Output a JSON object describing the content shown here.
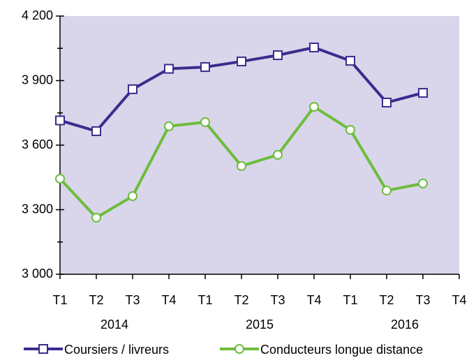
{
  "chart_data": {
    "type": "line",
    "categories": [
      "T1",
      "T2",
      "T3",
      "T4",
      "T1",
      "T2",
      "T3",
      "T4",
      "T1",
      "T2",
      "T3",
      "T4"
    ],
    "groups": [
      {
        "label": "2014",
        "span": [
          0,
          3
        ]
      },
      {
        "label": "2015",
        "span": [
          4,
          7
        ]
      },
      {
        "label": "2016",
        "span": [
          8,
          11
        ]
      }
    ],
    "series": [
      {
        "name": "Coursiers / livreurs",
        "color": "#3d2b8e",
        "marker": "square",
        "values": [
          3715,
          3665,
          3860,
          3955,
          3963,
          3989,
          4018,
          4054,
          3992,
          3798,
          3843,
          null
        ]
      },
      {
        "name": "Conducteurs longue distance",
        "color": "#6cbd3b",
        "marker": "circle",
        "values": [
          3444,
          3263,
          3363,
          3688,
          3707,
          3503,
          3555,
          3778,
          3671,
          3389,
          3422,
          null
        ]
      }
    ],
    "ylim": [
      3000,
      4200
    ],
    "yticks": [
      {
        "value": 3000,
        "label": "3 000"
      },
      {
        "value": 3300,
        "label": "3 300"
      },
      {
        "value": 3600,
        "label": "3 600"
      },
      {
        "value": 3900,
        "label": "3 900"
      },
      {
        "value": 4200,
        "label": "4 200"
      }
    ],
    "yminorticks": [
      3150,
      3450,
      3750,
      4050
    ],
    "grid": false,
    "background": "#d9d5ea",
    "legend": "bottom"
  }
}
